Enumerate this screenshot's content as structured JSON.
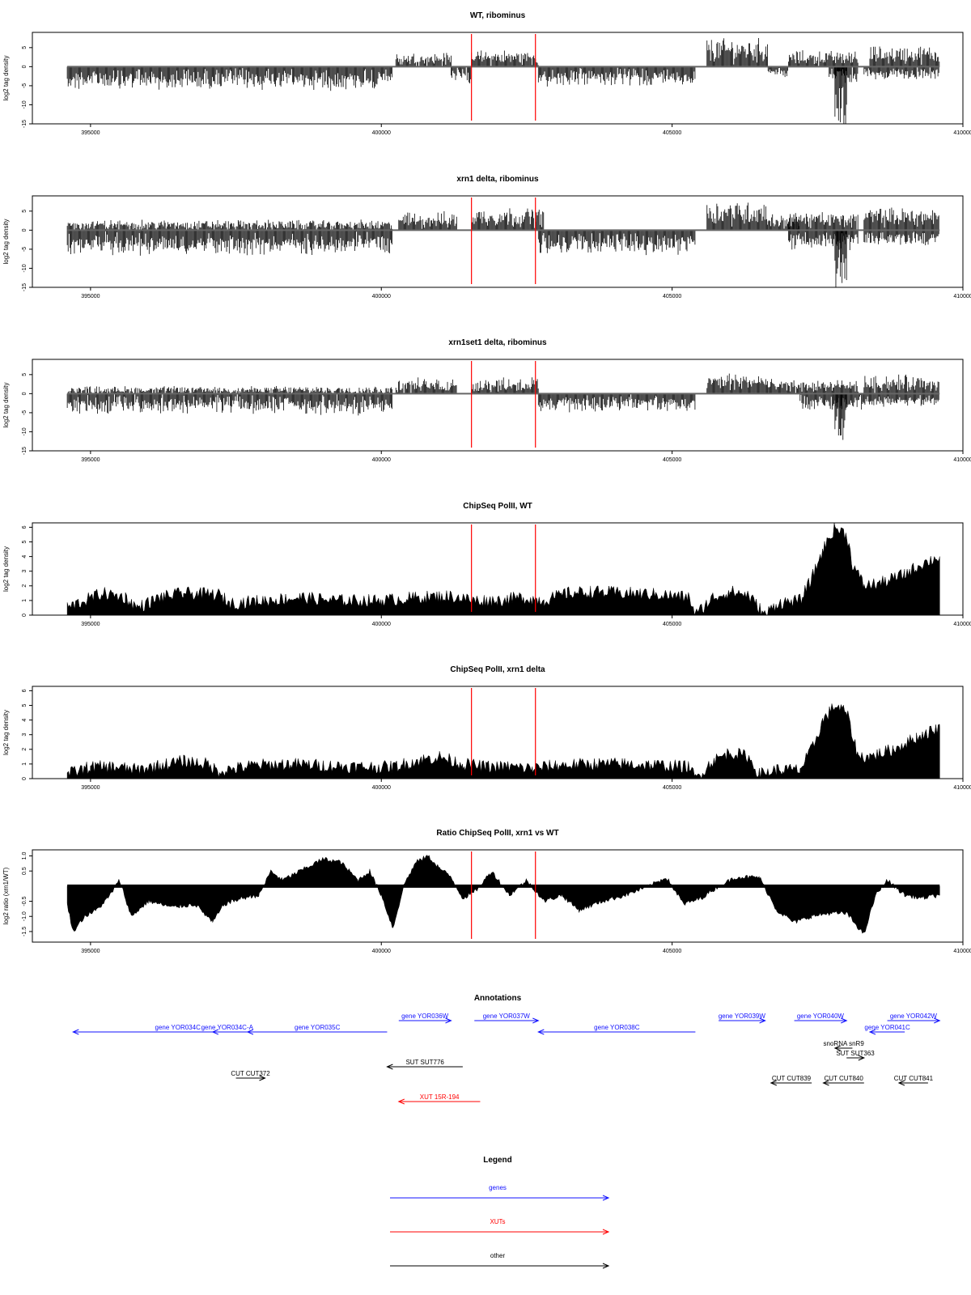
{
  "x_axis_ticks": [
    "395000",
    "400000",
    "405000",
    "410000"
  ],
  "panels": [
    {
      "title": "WT, ribominus",
      "ylabel": "log2 tag density",
      "y_ticks": [
        "5",
        "0",
        "-5",
        "-10",
        "-15"
      ]
    },
    {
      "title": "xrn1 delta, ribominus",
      "ylabel": "log2 tag density",
      "y_ticks": [
        "5",
        "0",
        "-5",
        "-10",
        "-15"
      ]
    },
    {
      "title": "xrn1set1 delta, ribominus",
      "ylabel": "log2 tag density",
      "y_ticks": [
        "5",
        "0",
        "-5",
        "-10",
        "-15"
      ]
    },
    {
      "title": "ChipSeq PolII, WT",
      "ylabel": "log2 tag density",
      "y_ticks": [
        "0",
        "1",
        "2",
        "3",
        "4",
        "5",
        "6"
      ]
    },
    {
      "title": "ChipSeq PolII, xrn1 delta",
      "ylabel": "log2 tag density",
      "y_ticks": [
        "0",
        "1",
        "2",
        "3",
        "4",
        "5",
        "6"
      ]
    },
    {
      "title": "Ratio ChipSeq PolII, xrn1 vs WT",
      "ylabel": "log2 ratio (xrn1/WT)",
      "y_ticks": [
        "1.0",
        "0.5",
        "-0.5",
        "-1.0",
        "-1.5"
      ]
    }
  ],
  "annotations": {
    "title": "Annotations",
    "features": [
      {
        "label": "gene YOR034C",
        "start": 398300,
        "end": 394700,
        "color": "#1010ff"
      },
      {
        "label": "gene YOR034C-A",
        "start": 397600,
        "end": 397100,
        "color": "#1010ff"
      },
      {
        "label": "gene YOR035C",
        "start": 400100,
        "end": 397700,
        "color": "#1010ff"
      },
      {
        "label": "gene YOR036W",
        "start": 400300,
        "end": 401200,
        "color": "#1010ff"
      },
      {
        "label": "gene YOR037W",
        "start": 401600,
        "end": 402700,
        "color": "#1010ff"
      },
      {
        "label": "gene YOR038C",
        "start": 405400,
        "end": 402700,
        "color": "#1010ff"
      },
      {
        "label": "gene YOR039W",
        "start": 405800,
        "end": 406600,
        "color": "#1010ff"
      },
      {
        "label": "gene YOR040W",
        "start": 407100,
        "end": 408000,
        "color": "#1010ff"
      },
      {
        "label": "gene YOR041C",
        "start": 409000,
        "end": 408400,
        "color": "#1010ff"
      },
      {
        "label": "gene YOR042W",
        "start": 408700,
        "end": 409600,
        "color": "#1010ff"
      },
      {
        "label": "snoRNA snR9",
        "start": 408100,
        "end": 407800,
        "color": "#000000"
      },
      {
        "label": "SUT SUT363",
        "start": 408000,
        "end": 408300,
        "color": "#000000"
      },
      {
        "label": "SUT SUT776",
        "start": 401400,
        "end": 400100,
        "color": "#000000"
      },
      {
        "label": "CUT CUT372",
        "start": 397500,
        "end": 398000,
        "color": "#000000"
      },
      {
        "label": "CUT CUT839",
        "start": 407400,
        "end": 406700,
        "color": "#000000"
      },
      {
        "label": "CUT CUT840",
        "start": 408300,
        "end": 407600,
        "color": "#000000"
      },
      {
        "label": "CUT CUT841",
        "start": 409400,
        "end": 408900,
        "color": "#000000"
      },
      {
        "label": "XUT 15R-194",
        "start": 401700,
        "end": 400300,
        "color": "#ff0000"
      }
    ]
  },
  "legend": {
    "title": "Legend",
    "items": [
      {
        "label": "genes",
        "color": "#1010ff"
      },
      {
        "label": "XUTs",
        "color": "#ff0000"
      },
      {
        "label": "other",
        "color": "#000000"
      }
    ]
  },
  "chart_data": [
    {
      "type": "bar",
      "title": "WT, ribominus",
      "ylabel": "log2 tag density",
      "xlim": [
        394000,
        410000
      ],
      "ylim": [
        -15,
        9
      ],
      "x_ticks": [
        395000,
        400000,
        405000,
        410000
      ],
      "x_domain": [
        394600,
        409600
      ],
      "marker_lines_x": [
        401550,
        402650
      ],
      "marker_color": "#ff0000",
      "segments": [
        {
          "x": [
            394600,
            400200
          ],
          "strand": "minus",
          "level": -3.5,
          "spread": 1.5
        },
        {
          "x": [
            400250,
            401200
          ],
          "strand": "plus",
          "level": 2.0,
          "spread": 1.2
        },
        {
          "x": [
            401200,
            401550
          ],
          "strand": "minus",
          "level": -2.5,
          "spread": 1.0
        },
        {
          "x": [
            401550,
            402700
          ],
          "strand": "plus",
          "level": 2.5,
          "spread": 1.2
        },
        {
          "x": [
            402700,
            405400
          ],
          "strand": "minus",
          "level": -3.0,
          "spread": 1.2
        },
        {
          "x": [
            405600,
            406650
          ],
          "strand": "plus",
          "level": 5.0,
          "spread": 1.2
        },
        {
          "x": [
            406650,
            407000
          ],
          "strand": "minus",
          "level": -1.5,
          "spread": 0.8
        },
        {
          "x": [
            407000,
            408200
          ],
          "strand": "plus",
          "level": 2.5,
          "spread": 1.0
        },
        {
          "x": [
            407700,
            408200
          ],
          "strand": "minus",
          "level": -2.5,
          "spread": 1.0
        },
        {
          "x": [
            407800,
            408000
          ],
          "strand": "minus",
          "level": -13.5,
          "spread": 0.8
        },
        {
          "x": [
            408400,
            409600
          ],
          "strand": "plus",
          "level": 3.5,
          "spread": 1.1
        },
        {
          "x": [
            408300,
            409600
          ],
          "strand": "minus",
          "level": -2.0,
          "spread": 0.8
        }
      ]
    },
    {
      "type": "bar",
      "title": "xrn1 delta, ribominus",
      "ylabel": "log2 tag density",
      "xlim": [
        394000,
        410000
      ],
      "ylim": [
        -15,
        9
      ],
      "x_ticks": [
        395000,
        400000,
        405000,
        410000
      ],
      "x_domain": [
        394600,
        409600
      ],
      "marker_lines_x": [
        401550,
        402650
      ],
      "marker_color": "#ff0000",
      "segments": [
        {
          "x": [
            394600,
            400200
          ],
          "strand": "minus",
          "level": -3.8,
          "spread": 1.5
        },
        {
          "x": [
            394600,
            400200
          ],
          "strand": "plus",
          "level": 1.2,
          "spread": 1.0
        },
        {
          "x": [
            400300,
            401300
          ],
          "strand": "plus",
          "level": 2.8,
          "spread": 1.2
        },
        {
          "x": [
            401550,
            402800
          ],
          "strand": "plus",
          "level": 4.0,
          "spread": 1.0
        },
        {
          "x": [
            402700,
            405400
          ],
          "strand": "minus",
          "level": -4.0,
          "spread": 1.2
        },
        {
          "x": [
            405600,
            406650
          ],
          "strand": "plus",
          "level": 5.5,
          "spread": 1.0
        },
        {
          "x": [
            406650,
            407200
          ],
          "strand": "plus",
          "level": 2.5,
          "spread": 1.0
        },
        {
          "x": [
            407000,
            408200
          ],
          "strand": "plus",
          "level": 3.0,
          "spread": 1.0
        },
        {
          "x": [
            407000,
            408200
          ],
          "strand": "minus",
          "level": -3.0,
          "spread": 1.2
        },
        {
          "x": [
            407800,
            408000
          ],
          "strand": "minus",
          "level": -12.0,
          "spread": 1.0
        },
        {
          "x": [
            408300,
            409600
          ],
          "strand": "plus",
          "level": 4.0,
          "spread": 1.0
        },
        {
          "x": [
            408300,
            409600
          ],
          "strand": "minus",
          "level": -2.5,
          "spread": 1.0
        }
      ]
    },
    {
      "type": "bar",
      "title": "xrn1set1 delta, ribominus",
      "ylabel": "log2 tag density",
      "xlim": [
        394000,
        410000
      ],
      "ylim": [
        -15,
        9
      ],
      "x_ticks": [
        395000,
        400000,
        405000,
        410000
      ],
      "x_domain": [
        394600,
        409600
      ],
      "marker_lines_x": [
        401550,
        402650
      ],
      "marker_color": "#ff0000",
      "segments": [
        {
          "x": [
            394600,
            400200
          ],
          "strand": "minus",
          "level": -3.0,
          "spread": 1.5
        },
        {
          "x": [
            394600,
            400200
          ],
          "strand": "plus",
          "level": 0.8,
          "spread": 0.8
        },
        {
          "x": [
            400250,
            401300
          ],
          "strand": "plus",
          "level": 2.2,
          "spread": 1.2
        },
        {
          "x": [
            401550,
            402700
          ],
          "strand": "plus",
          "level": 2.5,
          "spread": 1.2
        },
        {
          "x": [
            402700,
            405400
          ],
          "strand": "minus",
          "level": -2.8,
          "spread": 1.2
        },
        {
          "x": [
            405600,
            406650
          ],
          "strand": "plus",
          "level": 3.5,
          "spread": 1.1
        },
        {
          "x": [
            406650,
            408200
          ],
          "strand": "plus",
          "level": 2.0,
          "spread": 1.0
        },
        {
          "x": [
            407200,
            408300
          ],
          "strand": "minus",
          "level": -2.5,
          "spread": 1.0
        },
        {
          "x": [
            407800,
            408000
          ],
          "strand": "minus",
          "level": -10.0,
          "spread": 1.2
        },
        {
          "x": [
            408300,
            409600
          ],
          "strand": "plus",
          "level": 3.0,
          "spread": 1.1
        },
        {
          "x": [
            408300,
            409600
          ],
          "strand": "minus",
          "level": -2.0,
          "spread": 0.8
        }
      ]
    },
    {
      "type": "area",
      "title": "ChipSeq PolII, WT",
      "ylabel": "log2 tag density",
      "xlim": [
        394000,
        410000
      ],
      "ylim": [
        0,
        6.3
      ],
      "x_ticks": [
        395000,
        400000,
        405000,
        410000
      ],
      "marker_lines_x": [
        401550,
        402650
      ],
      "marker_color": "#ff0000",
      "x": [
        394600,
        394900,
        395200,
        395600,
        395800,
        396200,
        396600,
        397200,
        397400,
        398000,
        398600,
        399200,
        400000,
        400600,
        401200,
        401600,
        402000,
        402400,
        402800,
        403200,
        403600,
        404200,
        404800,
        405300,
        405400,
        405700,
        406000,
        406300,
        406600,
        406800,
        407200,
        407400,
        407600,
        407800,
        408000,
        408100,
        408300,
        408600,
        409000,
        409300,
        409600
      ],
      "y": [
        0.5,
        1.0,
        1.5,
        1.2,
        0.5,
        1.2,
        1.5,
        1.4,
        0.8,
        1.0,
        1.2,
        1.0,
        1.0,
        1.2,
        1.3,
        1.0,
        1.0,
        1.2,
        1.0,
        1.5,
        1.6,
        1.5,
        1.4,
        1.2,
        0.0,
        1.2,
        1.6,
        1.4,
        0.0,
        0.8,
        1.0,
        2.5,
        4.5,
        6.0,
        5.5,
        3.5,
        2.0,
        2.2,
        2.8,
        3.5,
        4.0
      ]
    },
    {
      "type": "area",
      "title": "ChipSeq PolII, xrn1 delta",
      "ylabel": "log2 tag density",
      "xlim": [
        394000,
        410000
      ],
      "ylim": [
        0,
        6.3
      ],
      "x_ticks": [
        395000,
        400000,
        405000,
        410000
      ],
      "marker_lines_x": [
        401550,
        402650
      ],
      "marker_color": "#ff0000",
      "x": [
        394600,
        395000,
        395400,
        395800,
        396200,
        396600,
        397000,
        397200,
        397800,
        398400,
        399000,
        399600,
        400200,
        400600,
        401000,
        401400,
        401800,
        402200,
        402600,
        403000,
        403600,
        404200,
        404800,
        405300,
        405400,
        405700,
        406000,
        406300,
        406500,
        406800,
        407200,
        407400,
        407600,
        407800,
        408000,
        408200,
        408400,
        408800,
        409200,
        409600
      ],
      "y": [
        0.3,
        0.8,
        0.8,
        0.6,
        0.9,
        1.2,
        1.0,
        0.5,
        0.9,
        1.0,
        0.9,
        0.8,
        0.8,
        1.2,
        1.5,
        1.0,
        0.8,
        0.8,
        0.7,
        0.9,
        1.0,
        1.0,
        0.9,
        0.8,
        0.0,
        1.2,
        1.8,
        1.5,
        0.3,
        0.6,
        0.6,
        2.0,
        4.0,
        5.0,
        4.5,
        1.5,
        1.5,
        2.0,
        2.8,
        3.5
      ]
    },
    {
      "type": "area",
      "title": "Ratio ChipSeq PolII, xrn1 vs WT",
      "ylabel": "log2 ratio (xrn1/WT)",
      "xlim": [
        394000,
        410000
      ],
      "ylim": [
        -1.85,
        1.2
      ],
      "x_ticks": [
        395000,
        400000,
        405000,
        410000
      ],
      "marker_lines_x": [
        401550,
        402650
      ],
      "marker_color": "#ff0000",
      "x": [
        394600,
        394700,
        394900,
        395100,
        395300,
        395500,
        395700,
        396000,
        396400,
        396800,
        397100,
        397300,
        397600,
        397900,
        398100,
        398300,
        398700,
        399000,
        399300,
        399600,
        399800,
        400000,
        400200,
        400400,
        400600,
        400800,
        401000,
        401200,
        401400,
        401600,
        401900,
        402200,
        402500,
        402800,
        403100,
        403400,
        403800,
        404200,
        404600,
        404900,
        405200,
        405500,
        405800,
        406100,
        406500,
        406800,
        407100,
        407400,
        407700,
        408000,
        408300,
        408500,
        408700,
        409000,
        409300,
        409600
      ],
      "y": [
        -0.6,
        -1.5,
        -1.0,
        -0.8,
        -0.4,
        0.2,
        -1.0,
        -0.5,
        -0.7,
        -0.6,
        -1.2,
        -0.6,
        -0.4,
        -0.3,
        0.5,
        0.2,
        0.6,
        0.9,
        0.8,
        0.2,
        0.5,
        -0.3,
        -1.4,
        0.1,
        0.8,
        1.0,
        0.6,
        0.3,
        -0.4,
        -0.2,
        0.5,
        -0.3,
        0.2,
        -0.5,
        -0.3,
        -0.8,
        -0.5,
        -0.3,
        0.0,
        0.3,
        -0.6,
        -0.4,
        0.0,
        0.3,
        0.3,
        -0.8,
        -1.2,
        -1.0,
        -0.9,
        -0.9,
        -1.6,
        -0.3,
        0.2,
        -0.3,
        -0.4,
        -0.3
      ]
    }
  ]
}
